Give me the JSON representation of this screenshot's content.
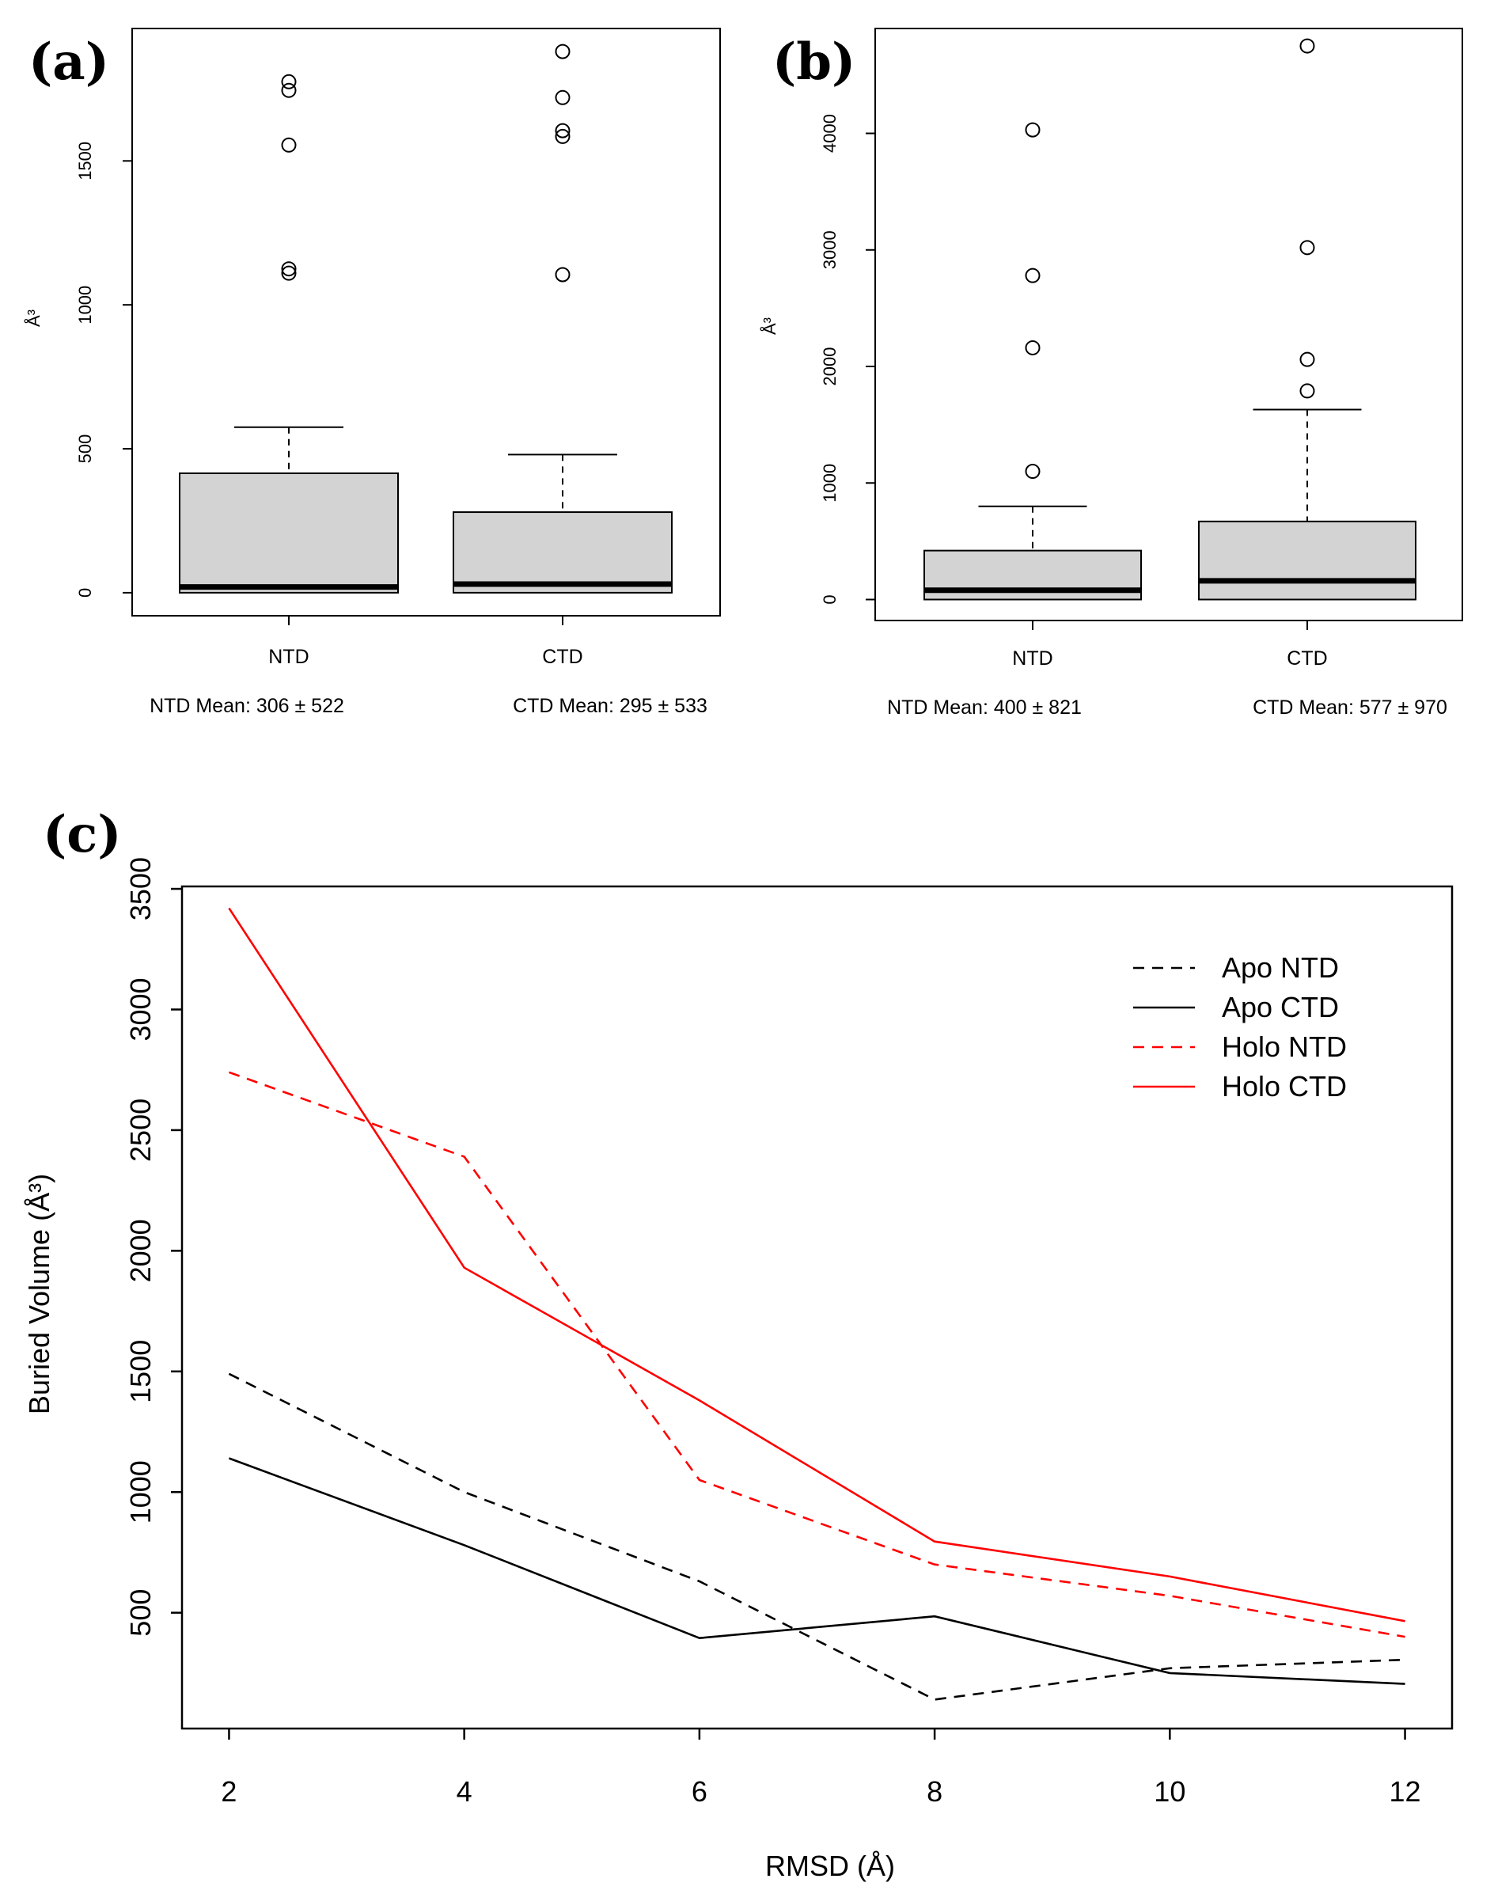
{
  "chart_data": [
    {
      "type": "box",
      "panel_label": "(a)",
      "ylabel": "Å³",
      "yticks": [
        0,
        500,
        1000,
        1500
      ],
      "ylim": [
        -80,
        1960
      ],
      "categories": [
        "NTD",
        "CTD"
      ],
      "boxes": [
        {
          "name": "NTD",
          "whisker_low": 0,
          "q1": 0,
          "median": 20,
          "q3": 415,
          "whisker_high": 575,
          "outliers": [
            1110,
            1125,
            1555,
            1745,
            1775
          ]
        },
        {
          "name": "CTD",
          "whisker_low": 0,
          "q1": 0,
          "median": 30,
          "q3": 280,
          "whisker_high": 480,
          "outliers": [
            1105,
            1585,
            1605,
            1720,
            1880
          ]
        }
      ],
      "captions": [
        "NTD Mean: 306 ± 522",
        "CTD Mean: 295 ± 533"
      ]
    },
    {
      "type": "box",
      "panel_label": "(b)",
      "ylabel": "Å³",
      "yticks": [
        0,
        1000,
        2000,
        3000,
        4000
      ],
      "ylim": [
        -180,
        4900
      ],
      "categories": [
        "NTD",
        "CTD"
      ],
      "boxes": [
        {
          "name": "NTD",
          "whisker_low": 0,
          "q1": 0,
          "median": 80,
          "q3": 420,
          "whisker_high": 800,
          "outliers": [
            1100,
            2160,
            2780,
            4030
          ]
        },
        {
          "name": "CTD",
          "whisker_low": 0,
          "q1": 0,
          "median": 160,
          "q3": 670,
          "whisker_high": 1630,
          "outliers": [
            1790,
            2060,
            3020,
            4750
          ]
        }
      ],
      "captions": [
        "NTD Mean: 400 ± 821",
        "CTD Mean: 577 ± 970"
      ]
    },
    {
      "type": "line",
      "panel_label": "(c)",
      "xlabel": "RMSD (Å)",
      "ylabel": "Buried Volume (Å³)",
      "x": [
        2,
        4,
        6,
        8,
        10,
        12
      ],
      "xticks": [
        2,
        4,
        6,
        8,
        10,
        12
      ],
      "yticks": [
        500,
        1000,
        1500,
        2000,
        2500,
        3000,
        3500
      ],
      "xlim": [
        1.6,
        12.4
      ],
      "ylim": [
        20,
        3510
      ],
      "legend_position": "top-right",
      "series": [
        {
          "name": "Apo NTD",
          "color": "#000000",
          "dashed": true,
          "values": [
            1490,
            1000,
            630,
            140,
            270,
            305
          ]
        },
        {
          "name": "Apo CTD",
          "color": "#000000",
          "dashed": false,
          "values": [
            1140,
            780,
            395,
            485,
            250,
            205
          ]
        },
        {
          "name": "Holo NTD",
          "color": "#ff0000",
          "dashed": true,
          "values": [
            2740,
            2390,
            1050,
            700,
            570,
            400
          ]
        },
        {
          "name": "Holo CTD",
          "color": "#ff0000",
          "dashed": false,
          "values": [
            3420,
            1930,
            1380,
            795,
            650,
            465
          ]
        }
      ]
    }
  ]
}
